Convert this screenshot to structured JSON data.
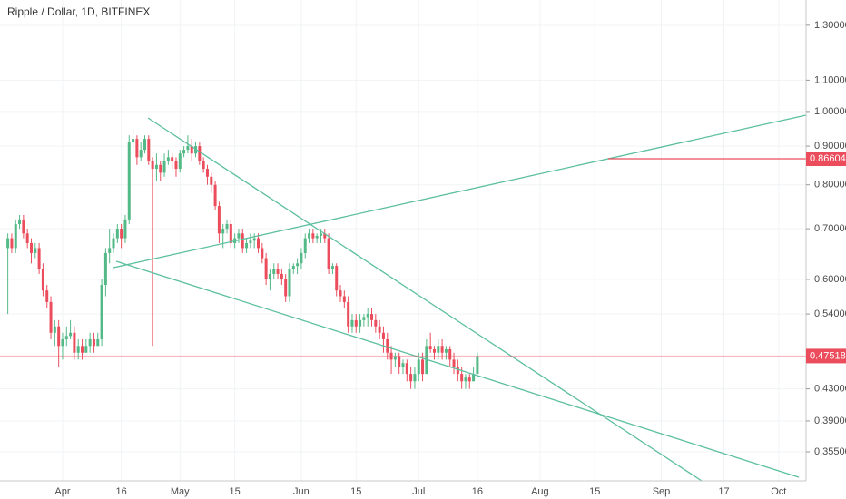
{
  "chart_data": {
    "type": "candlestick",
    "title": "Ripple / Dollar, 1D, BITFINEX",
    "log_scale": true,
    "grid": true,
    "up_color": "#53b987",
    "down_color": "#eb4d5c",
    "x": [
      "Mar 18",
      "Mar 19",
      "Mar 20",
      "Mar 21",
      "Mar 22",
      "Mar 23",
      "Mar 24",
      "Mar 25",
      "Mar 26",
      "Mar 27",
      "Mar 28",
      "Mar 29",
      "Mar 30",
      "Mar 31",
      "Apr 1",
      "Apr 2",
      "Apr 3",
      "Apr 4",
      "Apr 5",
      "Apr 6",
      "Apr 7",
      "Apr 8",
      "Apr 9",
      "Apr 10",
      "Apr 11",
      "Apr 12",
      "Apr 13",
      "Apr 14",
      "Apr 15",
      "Apr 16",
      "Apr 17",
      "Apr 18",
      "Apr 19",
      "Apr 20",
      "Apr 21",
      "Apr 22",
      "Apr 23",
      "Apr 24",
      "Apr 25",
      "Apr 26",
      "Apr 27",
      "Apr 28",
      "Apr 29",
      "Apr 30",
      "May 1",
      "May 2",
      "May 3",
      "May 4",
      "May 5",
      "May 6",
      "May 7",
      "May 8",
      "May 9",
      "May 10",
      "May 11",
      "May 12",
      "May 13",
      "May 14",
      "May 15",
      "May 16",
      "May 17",
      "May 18",
      "May 19",
      "May 20",
      "May 21",
      "May 22",
      "May 23",
      "May 24",
      "May 25",
      "May 26",
      "May 27",
      "May 28",
      "May 29",
      "May 30",
      "May 31",
      "Jun 1",
      "Jun 2",
      "Jun 3",
      "Jun 4",
      "Jun 5",
      "Jun 6",
      "Jun 7",
      "Jun 8",
      "Jun 9",
      "Jun 10",
      "Jun 11",
      "Jun 12",
      "Jun 13",
      "Jun 14",
      "Jun 15",
      "Jun 16",
      "Jun 17",
      "Jun 18",
      "Jun 19",
      "Jun 20",
      "Jun 21",
      "Jun 22",
      "Jun 23",
      "Jun 24",
      "Jun 25",
      "Jun 26",
      "Jun 27",
      "Jun 28",
      "Jun 29",
      "Jun 30",
      "Jul 1",
      "Jul 2",
      "Jul 3",
      "Jul 4",
      "Jul 5",
      "Jul 6",
      "Jul 7",
      "Jul 8",
      "Jul 9",
      "Jul 10",
      "Jul 11",
      "Jul 12",
      "Jul 13",
      "Jul 14",
      "Jul 15",
      "Jul 16"
    ],
    "open": [
      0.66,
      0.68,
      0.66,
      0.71,
      0.72,
      0.69,
      0.67,
      0.65,
      0.66,
      0.62,
      0.58,
      0.56,
      0.51,
      0.52,
      0.49,
      0.5,
      0.505,
      0.51,
      0.48,
      0.49,
      0.48,
      0.49,
      0.5,
      0.49,
      0.5,
      0.59,
      0.65,
      0.66,
      0.68,
      0.7,
      0.68,
      0.72,
      0.91,
      0.92,
      0.87,
      0.89,
      0.92,
      0.86,
      0.84,
      0.85,
      0.83,
      0.86,
      0.87,
      0.86,
      0.84,
      0.88,
      0.89,
      0.9,
      0.88,
      0.9,
      0.86,
      0.84,
      0.82,
      0.8,
      0.75,
      0.69,
      0.7,
      0.71,
      0.67,
      0.68,
      0.69,
      0.66,
      0.67,
      0.675,
      0.68,
      0.66,
      0.64,
      0.6,
      0.61,
      0.62,
      0.61,
      0.6,
      0.57,
      0.62,
      0.625,
      0.63,
      0.65,
      0.68,
      0.69,
      0.68,
      0.685,
      0.69,
      0.68,
      0.62,
      0.625,
      0.58,
      0.57,
      0.56,
      0.52,
      0.53,
      0.52,
      0.53,
      0.535,
      0.54,
      0.53,
      0.52,
      0.51,
      0.5,
      0.48,
      0.47,
      0.475,
      0.46,
      0.465,
      0.45,
      0.44,
      0.45,
      0.47,
      0.45,
      0.49,
      0.485,
      0.48,
      0.49,
      0.48,
      0.485,
      0.47,
      0.46,
      0.45,
      0.44,
      0.445,
      0.44,
      0.45
    ],
    "high": [
      0.69,
      0.69,
      0.72,
      0.73,
      0.73,
      0.7,
      0.68,
      0.67,
      0.67,
      0.63,
      0.59,
      0.57,
      0.53,
      0.53,
      0.51,
      0.52,
      0.53,
      0.52,
      0.5,
      0.5,
      0.5,
      0.51,
      0.51,
      0.51,
      0.6,
      0.66,
      0.7,
      0.69,
      0.71,
      0.71,
      0.73,
      0.93,
      0.95,
      0.93,
      0.91,
      0.93,
      0.93,
      0.87,
      0.88,
      0.86,
      0.88,
      0.89,
      0.88,
      0.87,
      0.89,
      0.9,
      0.93,
      0.92,
      0.91,
      0.91,
      0.87,
      0.85,
      0.83,
      0.81,
      0.76,
      0.71,
      0.72,
      0.72,
      0.69,
      0.7,
      0.7,
      0.68,
      0.69,
      0.69,
      0.69,
      0.67,
      0.65,
      0.62,
      0.63,
      0.63,
      0.62,
      0.61,
      0.63,
      0.63,
      0.64,
      0.66,
      0.69,
      0.7,
      0.7,
      0.69,
      0.7,
      0.7,
      0.69,
      0.63,
      0.63,
      0.59,
      0.58,
      0.57,
      0.54,
      0.54,
      0.54,
      0.54,
      0.55,
      0.55,
      0.54,
      0.53,
      0.52,
      0.51,
      0.49,
      0.48,
      0.48,
      0.47,
      0.47,
      0.46,
      0.46,
      0.48,
      0.48,
      0.5,
      0.51,
      0.49,
      0.5,
      0.5,
      0.49,
      0.49,
      0.48,
      0.47,
      0.46,
      0.45,
      0.45,
      0.46,
      0.48
    ],
    "low": [
      0.54,
      0.65,
      0.65,
      0.7,
      0.68,
      0.66,
      0.63,
      0.64,
      0.61,
      0.57,
      0.55,
      0.5,
      0.49,
      0.46,
      0.47,
      0.49,
      0.5,
      0.47,
      0.47,
      0.47,
      0.48,
      0.48,
      0.48,
      0.49,
      0.49,
      0.57,
      0.63,
      0.65,
      0.67,
      0.66,
      0.67,
      0.71,
      0.88,
      0.85,
      0.86,
      0.88,
      0.85,
      0.49,
      0.81,
      0.81,
      0.82,
      0.85,
      0.84,
      0.82,
      0.83,
      0.87,
      0.88,
      0.86,
      0.87,
      0.85,
      0.83,
      0.8,
      0.78,
      0.74,
      0.67,
      0.66,
      0.69,
      0.66,
      0.66,
      0.67,
      0.65,
      0.65,
      0.66,
      0.66,
      0.65,
      0.63,
      0.59,
      0.58,
      0.6,
      0.6,
      0.59,
      0.56,
      0.56,
      0.61,
      0.61,
      0.62,
      0.64,
      0.67,
      0.67,
      0.67,
      0.67,
      0.67,
      0.61,
      0.61,
      0.57,
      0.56,
      0.55,
      0.51,
      0.51,
      0.51,
      0.51,
      0.52,
      0.52,
      0.52,
      0.51,
      0.5,
      0.48,
      0.47,
      0.45,
      0.46,
      0.45,
      0.45,
      0.44,
      0.43,
      0.43,
      0.44,
      0.44,
      0.45,
      0.48,
      0.47,
      0.47,
      0.47,
      0.47,
      0.46,
      0.45,
      0.44,
      0.43,
      0.43,
      0.43,
      0.44,
      0.45
    ],
    "close": [
      0.68,
      0.66,
      0.71,
      0.72,
      0.69,
      0.67,
      0.65,
      0.66,
      0.62,
      0.58,
      0.56,
      0.51,
      0.52,
      0.49,
      0.5,
      0.505,
      0.51,
      0.48,
      0.49,
      0.48,
      0.49,
      0.5,
      0.49,
      0.5,
      0.59,
      0.65,
      0.66,
      0.68,
      0.7,
      0.68,
      0.72,
      0.91,
      0.92,
      0.87,
      0.89,
      0.92,
      0.86,
      0.84,
      0.85,
      0.83,
      0.86,
      0.87,
      0.86,
      0.84,
      0.88,
      0.89,
      0.9,
      0.88,
      0.9,
      0.86,
      0.84,
      0.82,
      0.8,
      0.75,
      0.69,
      0.7,
      0.71,
      0.67,
      0.68,
      0.69,
      0.66,
      0.67,
      0.675,
      0.68,
      0.66,
      0.64,
      0.6,
      0.61,
      0.62,
      0.61,
      0.6,
      0.57,
      0.62,
      0.625,
      0.63,
      0.65,
      0.68,
      0.69,
      0.68,
      0.685,
      0.69,
      0.68,
      0.62,
      0.625,
      0.58,
      0.57,
      0.56,
      0.52,
      0.53,
      0.52,
      0.53,
      0.535,
      0.54,
      0.53,
      0.52,
      0.51,
      0.5,
      0.48,
      0.47,
      0.475,
      0.46,
      0.465,
      0.45,
      0.44,
      0.45,
      0.47,
      0.45,
      0.49,
      0.485,
      0.48,
      0.49,
      0.48,
      0.485,
      0.47,
      0.46,
      0.45,
      0.44,
      0.445,
      0.44,
      0.45,
      0.475
    ],
    "xlim": [
      "Mar 16",
      "Oct 8"
    ],
    "xticks": [
      {
        "value": "Apr 1",
        "label": "Apr"
      },
      {
        "value": "Apr 16",
        "label": "16"
      },
      {
        "value": "May 1",
        "label": "May"
      },
      {
        "value": "May 15",
        "label": "15"
      },
      {
        "value": "Jun 1",
        "label": "Jun"
      },
      {
        "value": "Jun 15",
        "label": "15"
      },
      {
        "value": "Jul 1",
        "label": "Jul"
      },
      {
        "value": "Jul 16",
        "label": "16"
      },
      {
        "value": "Aug 1",
        "label": "Aug"
      },
      {
        "value": "Aug 15",
        "label": "15"
      },
      {
        "value": "Sep 1",
        "label": "Sep"
      },
      {
        "value": "Sep 17",
        "label": "17"
      },
      {
        "value": "Oct 1",
        "label": "Oct"
      }
    ],
    "ylim": [
      0.325,
      1.404
    ],
    "yticks": [
      {
        "value": 1.3,
        "label": "1.30000"
      },
      {
        "value": 1.1,
        "label": "1.10000"
      },
      {
        "value": 1.0,
        "label": "1.00000"
      },
      {
        "value": 0.9,
        "label": "0.90000"
      },
      {
        "value": 0.8,
        "label": "0.80000"
      },
      {
        "value": 0.7,
        "label": "0.70000"
      },
      {
        "value": 0.6,
        "label": "0.60000"
      },
      {
        "value": 0.54,
        "label": "0.54000"
      },
      {
        "value": 0.43,
        "label": "0.43000"
      },
      {
        "value": 0.39,
        "label": "0.39000"
      },
      {
        "value": 0.355,
        "label": "0.35500"
      }
    ],
    "last_price": 0.47518,
    "alert_level": 0.86604,
    "line_color": "#eb4d5c"
  }
}
